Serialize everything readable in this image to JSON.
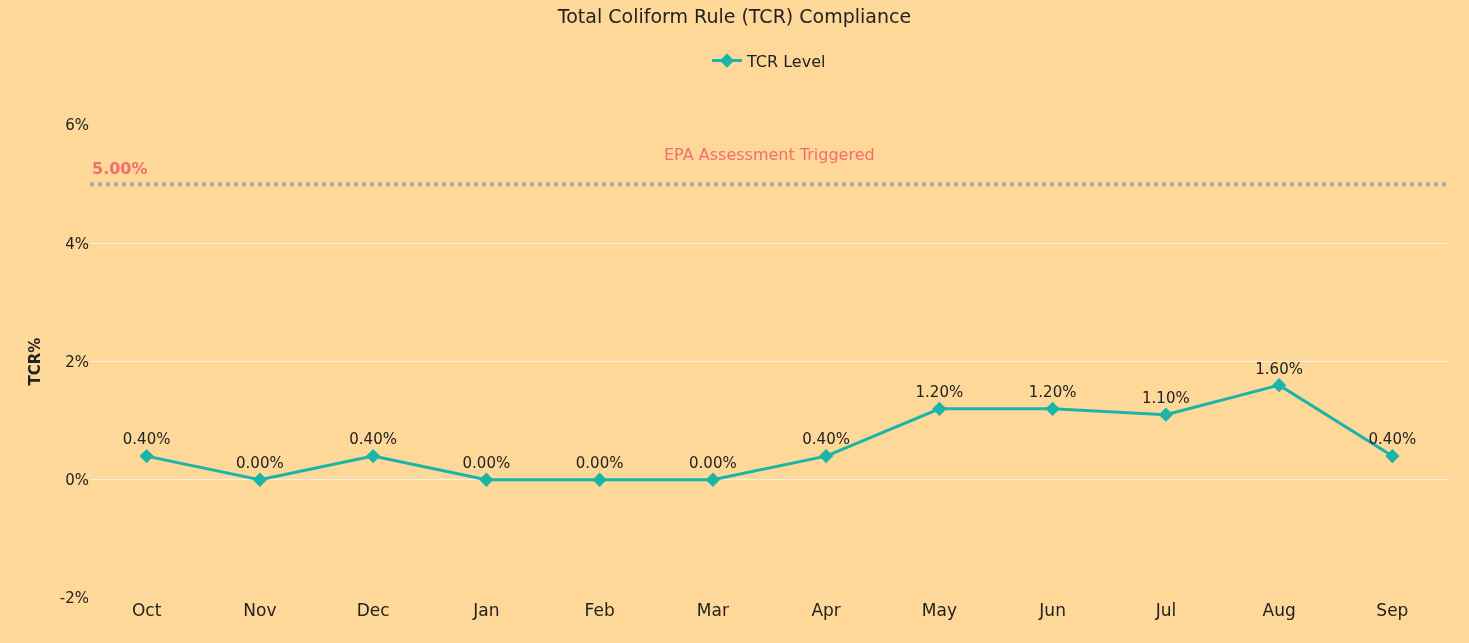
{
  "chart_data": {
    "type": "line",
    "title": "Total Coliform Rule (TCR) Compliance",
    "ylabel": "TCR%",
    "categories": [
      "Oct",
      "Nov",
      "Dec",
      "Jan",
      "Feb",
      "Mar",
      "Apr",
      "May",
      "Jun",
      "Jul",
      "Aug",
      "Sep"
    ],
    "series": [
      {
        "name": "TCR Level",
        "color": "#1ab5a8",
        "values": [
          0.4,
          0,
          0.4,
          0,
          0,
          0,
          0.4,
          1.2,
          1.2,
          1.1,
          1.6,
          0.4
        ],
        "value_labels": [
          "0.40%",
          "0.00%",
          "0.40%",
          "0.00%",
          "0.00%",
          "0.00%",
          "0.40%",
          "1.20%",
          "1.20%",
          "1.10%",
          "1.60%",
          "0.40%"
        ]
      }
    ],
    "ylim": [
      -2,
      6
    ],
    "yticks": [
      {
        "value": -2,
        "label": "-2%"
      },
      {
        "value": 0,
        "label": "0%"
      },
      {
        "value": 2,
        "label": "2%"
      },
      {
        "value": 4,
        "label": "4%"
      },
      {
        "value": 6,
        "label": "6%"
      }
    ],
    "ref_lines": [
      {
        "axis": "y",
        "value": 5,
        "label": "5.00%",
        "color": "#aaaaaa",
        "line_style": "dotted"
      }
    ],
    "annotations": [
      "EPA Assessment Triggered"
    ],
    "grid": "y",
    "legend": "top",
    "marker": "diamond",
    "line_style": "solid"
  }
}
